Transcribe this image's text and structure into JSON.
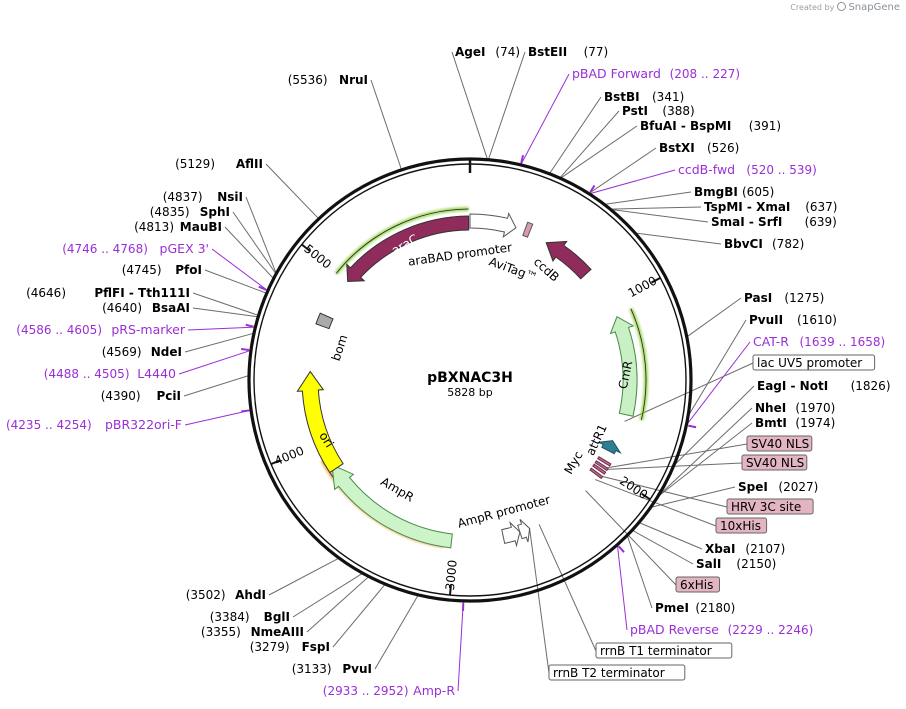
{
  "app": {
    "created_by": "Created by",
    "brand": "SnapGene"
  },
  "plasmid": {
    "name": "pBXNAC3H",
    "size": "5828 bp",
    "length": 5828
  },
  "ticks": [
    "1000",
    "2000",
    "3000",
    "4000",
    "5000"
  ],
  "colors": {
    "araC": "#8f2c5b",
    "promoter_outline": "#555555",
    "CmR": "#c9f0c4",
    "AmpR": "#cdf3c8",
    "ori": "#ffff00",
    "bom": "#aaaaaa",
    "green_glow": "#8ccf3a",
    "orange_glow": "#e8a23e",
    "primer": "#9a2fd6",
    "box_pink": "#e3b5c3",
    "attR1": "#2e7f93"
  },
  "features": [
    {
      "name": "araC",
      "label": "araC"
    },
    {
      "name": "araBAD promoter",
      "label": "araBAD promoter"
    },
    {
      "name": "AviTag",
      "label": "AviTag™"
    },
    {
      "name": "ccdB",
      "label": "ccdB"
    },
    {
      "name": "CmR",
      "label": "CmR"
    },
    {
      "name": "attR1",
      "label": "attR1"
    },
    {
      "name": "Myc",
      "label": "Myc"
    },
    {
      "name": "AmpR",
      "label": "AmpR"
    },
    {
      "name": "AmpR promoter",
      "label": "AmpR promoter"
    },
    {
      "name": "ori",
      "label": "ori"
    },
    {
      "name": "bom",
      "label": "bom"
    }
  ],
  "right_labels": [
    {
      "type": "enzyme",
      "name": "AgeI",
      "pos": "(74)"
    },
    {
      "type": "enzyme",
      "name": "BstEII",
      "pos": "(77)"
    },
    {
      "type": "primer",
      "name": "pBAD Forward",
      "pos": "(208 .. 227)"
    },
    {
      "type": "enzyme",
      "name": "BstBI",
      "pos": "(341)"
    },
    {
      "type": "enzyme",
      "name": "PstI",
      "pos": "(388)"
    },
    {
      "type": "enzyme",
      "name": "BfuAI - BspMI",
      "pos": "(391)"
    },
    {
      "type": "enzyme",
      "name": "BstXI",
      "pos": "(526)"
    },
    {
      "type": "primer",
      "name": "ccdB-fwd",
      "pos": "(520 .. 539)"
    },
    {
      "type": "enzyme",
      "name": "BmgBI",
      "pos": "(605)"
    },
    {
      "type": "enzyme",
      "name": "TspMI - XmaI",
      "pos": "(637)"
    },
    {
      "type": "enzyme",
      "name": "SmaI - SrfI",
      "pos": "(639)"
    },
    {
      "type": "enzyme",
      "name": "BbvCI",
      "pos": "(782)"
    },
    {
      "type": "enzyme",
      "name": "PasI",
      "pos": "(1275)"
    },
    {
      "type": "enzyme",
      "name": "PvuII",
      "pos": "(1610)"
    },
    {
      "type": "primer",
      "name": "CAT-R",
      "pos": "(1639 .. 1658)"
    },
    {
      "type": "box",
      "name": "lac UV5 promoter"
    },
    {
      "type": "enzyme",
      "name": "EagI - NotI",
      "pos": "(1826)"
    },
    {
      "type": "enzyme",
      "name": "NheI",
      "pos": "(1970)"
    },
    {
      "type": "enzyme",
      "name": "BmtI",
      "pos": "(1974)"
    },
    {
      "type": "pinkbox",
      "name": "SV40 NLS"
    },
    {
      "type": "pinkbox",
      "name": "SV40 NLS"
    },
    {
      "type": "enzyme",
      "name": "SpeI",
      "pos": "(2027)"
    },
    {
      "type": "pinkbox",
      "name": "HRV 3C site"
    },
    {
      "type": "pinkbox",
      "name": "10xHis"
    },
    {
      "type": "enzyme",
      "name": "XbaI",
      "pos": "(2107)"
    },
    {
      "type": "enzyme",
      "name": "SalI",
      "pos": "(2150)"
    },
    {
      "type": "pinkbox",
      "name": "6xHis"
    },
    {
      "type": "enzyme",
      "name": "PmeI",
      "pos": "(2180)"
    },
    {
      "type": "primer",
      "name": "pBAD Reverse",
      "pos": "(2229 .. 2246)"
    },
    {
      "type": "box",
      "name": "rrnB T1 terminator"
    },
    {
      "type": "box",
      "name": "rrnB T2 terminator"
    }
  ],
  "left_labels": [
    {
      "type": "enzyme",
      "name": "NruI",
      "pos": "(5536)"
    },
    {
      "type": "enzyme",
      "name": "AflII",
      "pos": "(5129)"
    },
    {
      "type": "enzyme",
      "name": "NsiI",
      "pos": "(4837)"
    },
    {
      "type": "enzyme",
      "name": "SphI",
      "pos": "(4835)"
    },
    {
      "type": "enzyme",
      "name": "MauBI",
      "pos": "(4813)"
    },
    {
      "type": "primer",
      "name": "pGEX 3'",
      "pos": "(4746 .. 4768)"
    },
    {
      "type": "enzyme",
      "name": "PfoI",
      "pos": "(4745)"
    },
    {
      "type": "enzyme",
      "name": "PflFI - Tth111I",
      "pos": "(4646)"
    },
    {
      "type": "enzyme",
      "name": "BsaAI",
      "pos": "(4640)"
    },
    {
      "type": "primer",
      "name": "pRS-marker",
      "pos": "(4586 .. 4605)"
    },
    {
      "type": "enzyme",
      "name": "NdeI",
      "pos": "(4569)"
    },
    {
      "type": "primer",
      "name": "L4440",
      "pos": "(4488 .. 4505)"
    },
    {
      "type": "enzyme",
      "name": "PciI",
      "pos": "(4390)"
    },
    {
      "type": "primer",
      "name": "pBR322ori-F",
      "pos": "(4235 .. 4254)"
    },
    {
      "type": "enzyme",
      "name": "AhdI",
      "pos": "(3502)"
    },
    {
      "type": "enzyme",
      "name": "BglI",
      "pos": "(3384)"
    },
    {
      "type": "enzyme",
      "name": "NmeAIII",
      "pos": "(3355)"
    },
    {
      "type": "enzyme",
      "name": "FspI",
      "pos": "(3279)"
    },
    {
      "type": "enzyme",
      "name": "PvuI",
      "pos": "(3133)"
    },
    {
      "type": "primer",
      "name": "Amp-R",
      "pos": "(2933 .. 2952)"
    }
  ]
}
